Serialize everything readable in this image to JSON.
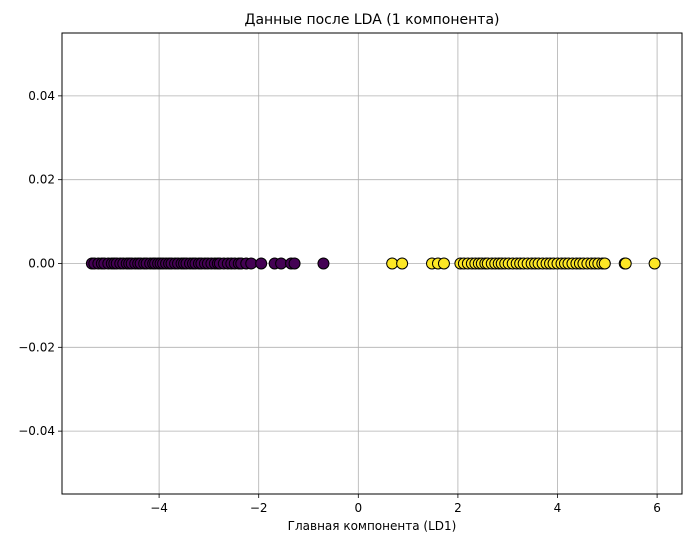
{
  "chart_data": {
    "type": "scatter",
    "title": "Данные после LDA (1 компонента)",
    "xlabel": "Главная компонента (LD1)",
    "ylabel": "",
    "xlim": [
      -5.95,
      6.5
    ],
    "ylim": [
      -0.055,
      0.055
    ],
    "xticks": [
      -4,
      -2,
      0,
      2,
      4,
      6
    ],
    "xtick_labels": [
      "−4",
      "−2",
      "0",
      "2",
      "4",
      "6"
    ],
    "yticks": [
      -0.04,
      -0.02,
      0.0,
      0.02,
      0.04
    ],
    "ytick_labels": [
      "−0.04",
      "−0.02",
      "0.00",
      "0.02",
      "0.04"
    ],
    "grid": true,
    "series": [
      {
        "color": "#440154",
        "x": [
          -5.35,
          -5.3,
          -5.22,
          -5.15,
          -5.1,
          -5.02,
          -4.95,
          -4.9,
          -4.85,
          -4.78,
          -4.72,
          -4.65,
          -4.6,
          -4.55,
          -4.48,
          -4.42,
          -4.37,
          -4.3,
          -4.25,
          -4.18,
          -4.12,
          -4.08,
          -4.02,
          -3.97,
          -3.92,
          -3.86,
          -3.8,
          -3.75,
          -3.68,
          -3.62,
          -3.55,
          -3.5,
          -3.45,
          -3.38,
          -3.32,
          -3.27,
          -3.2,
          -3.15,
          -3.08,
          -3.02,
          -2.95,
          -2.88,
          -2.82,
          -2.78,
          -2.7,
          -2.62,
          -2.55,
          -2.48,
          -2.4,
          -2.35,
          -2.25,
          -2.15,
          -1.95,
          -1.68,
          -1.55,
          -1.35,
          -1.28,
          -0.7
        ],
        "y": [
          0,
          0,
          0,
          0,
          0,
          0,
          0,
          0,
          0,
          0,
          0,
          0,
          0,
          0,
          0,
          0,
          0,
          0,
          0,
          0,
          0,
          0,
          0,
          0,
          0,
          0,
          0,
          0,
          0,
          0,
          0,
          0,
          0,
          0,
          0,
          0,
          0,
          0,
          0,
          0,
          0,
          0,
          0,
          0,
          0,
          0,
          0,
          0,
          0,
          0,
          0,
          0,
          0,
          0,
          0,
          0,
          0,
          0
        ]
      },
      {
        "color": "#fde725",
        "x": [
          0.68,
          0.88,
          1.48,
          1.6,
          1.72,
          2.05,
          2.12,
          2.2,
          2.28,
          2.35,
          2.42,
          2.48,
          2.55,
          2.6,
          2.68,
          2.75,
          2.82,
          2.88,
          2.95,
          3.02,
          3.1,
          3.18,
          3.25,
          3.32,
          3.4,
          3.48,
          3.55,
          3.62,
          3.7,
          3.78,
          3.85,
          3.92,
          4.0,
          4.08,
          4.15,
          4.22,
          4.3,
          4.38,
          4.45,
          4.52,
          4.6,
          4.68,
          4.75,
          4.82,
          4.9,
          4.95,
          5.35,
          5.37,
          5.95
        ],
        "y": [
          0,
          0,
          0,
          0,
          0,
          0,
          0,
          0,
          0,
          0,
          0,
          0,
          0,
          0,
          0,
          0,
          0,
          0,
          0,
          0,
          0,
          0,
          0,
          0,
          0,
          0,
          0,
          0,
          0,
          0,
          0,
          0,
          0,
          0,
          0,
          0,
          0,
          0,
          0,
          0,
          0,
          0,
          0,
          0,
          0,
          0,
          0,
          0,
          0
        ]
      }
    ]
  }
}
